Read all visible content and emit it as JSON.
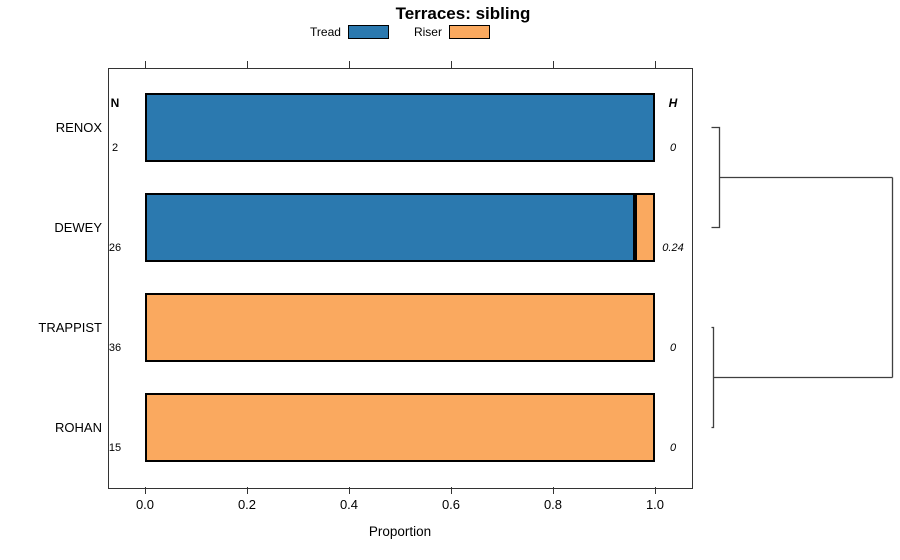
{
  "chart_data": {
    "type": "bar",
    "orientation": "horizontal-stacked",
    "title": "Terraces: sibling",
    "xlabel": "Proportion",
    "xlim": [
      0,
      1
    ],
    "grid": false,
    "legend_position": "top-center",
    "n_header": "N",
    "h_header": "H",
    "x_ticks": [
      {
        "label": "0.0",
        "value": 0.0
      },
      {
        "label": "0.2",
        "value": 0.2
      },
      {
        "label": "0.4",
        "value": 0.4
      },
      {
        "label": "0.6",
        "value": 0.6
      },
      {
        "label": "0.8",
        "value": 0.8
      },
      {
        "label": "1.0",
        "value": 1.0
      }
    ],
    "legend": [
      {
        "label": "Tread",
        "color": "#2B79AF"
      },
      {
        "label": "Riser",
        "color": "#FAA95F"
      }
    ],
    "categories": [
      "RENOX",
      "DEWEY",
      "TRAPPIST",
      "ROHAN"
    ],
    "rows": [
      {
        "category": "RENOX",
        "n": "2",
        "h": "0",
        "tread": 1.0,
        "riser": 0.0
      },
      {
        "category": "DEWEY",
        "n": "26",
        "h": "0.24",
        "tread": 0.9615,
        "riser": 0.0385
      },
      {
        "category": "TRAPPIST",
        "n": "36",
        "h": "0",
        "tread": 0.0,
        "riser": 1.0
      },
      {
        "category": "ROHAN",
        "n": "15",
        "h": "0",
        "tread": 0.0,
        "riser": 1.0
      }
    ],
    "dendrogram": {
      "cluster_1": [
        "RENOX",
        "DEWEY"
      ],
      "cluster_2": [
        "TRAPPIST",
        "ROHAN"
      ],
      "root_joins": [
        "cluster_1",
        "cluster_2"
      ]
    }
  },
  "colors": {
    "tread": "#2B79AF",
    "riser": "#FAA95F",
    "bar_border": "#000000",
    "axis": "#333333",
    "dendrogram_line": "#3F3F3F"
  }
}
